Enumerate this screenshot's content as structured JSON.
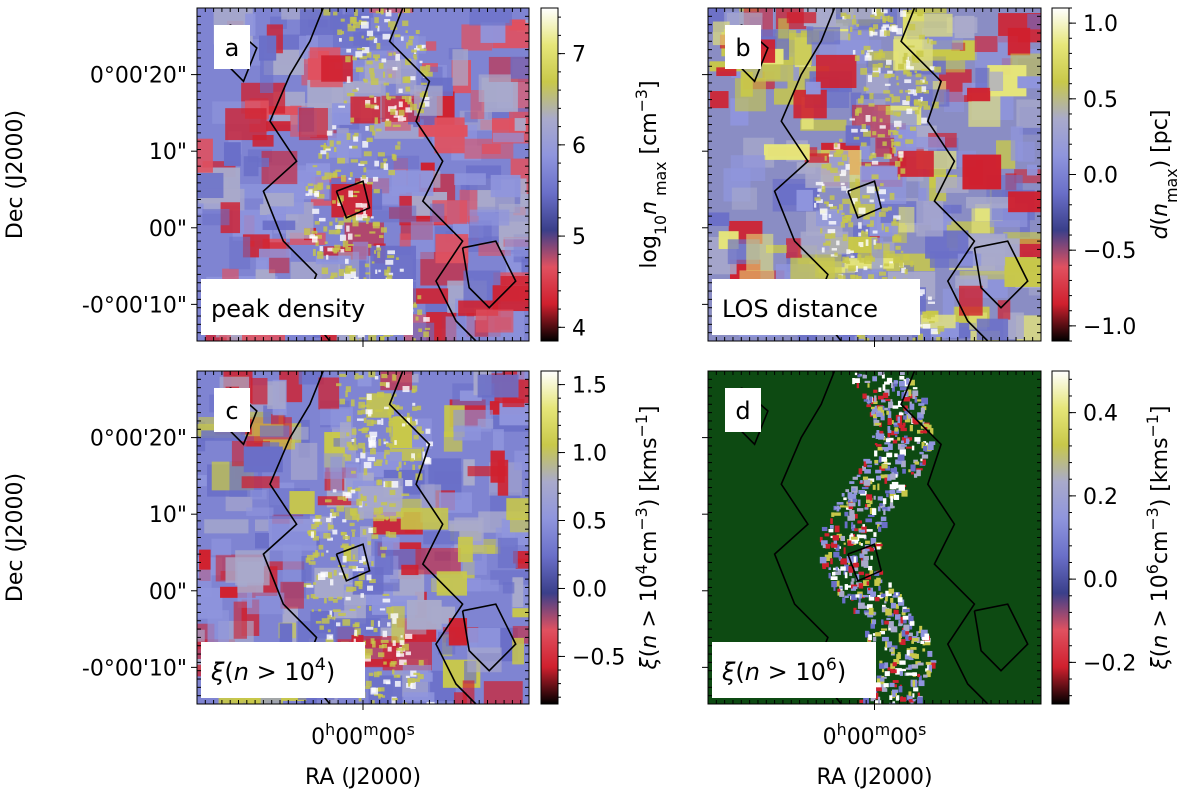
{
  "chart_data": [
    {
      "type": "heatmap",
      "id": "a",
      "panel_letter": "a",
      "label": "peak density",
      "ylabel": "Dec (J2000)",
      "xlabel": "",
      "yticks": [
        "0°00'20\"",
        "10\"",
        "00\"",
        "-0°00'10\""
      ],
      "xticks": [],
      "colorbar": {
        "label_plain": "log10 n max [cm^-3]",
        "label_parts": [
          {
            "t": "log"
          },
          {
            "t": "10",
            "sub": true
          },
          {
            "t": "n",
            "italic": true
          },
          {
            "t": " max",
            "sub": true
          },
          {
            "t": "  [cm"
          },
          {
            "t": "−3",
            "sup": true
          },
          {
            "t": "]"
          }
        ],
        "range": [
          3.85,
          7.5
        ],
        "ticks": [
          {
            "v": 4,
            "t": "4"
          },
          {
            "v": 5,
            "t": "5"
          },
          {
            "v": 6,
            "t": "6"
          },
          {
            "v": 7,
            "t": "7"
          }
        ],
        "colors": [
          "#000000",
          "#d0202e",
          "#e05160",
          "#3a3f8a",
          "#6a6fc8",
          "#8f95dd",
          "#a9aacb",
          "#c8c84a",
          "#e6e679",
          "#ffffff"
        ]
      }
    },
    {
      "type": "heatmap",
      "id": "b",
      "panel_letter": "b",
      "label": "LOS distance",
      "ylabel": "",
      "xlabel": "",
      "yticks": [],
      "xticks": [],
      "colorbar": {
        "label_plain": "d(n max) [pc]",
        "label_parts": [
          {
            "t": "d",
            "italic": true
          },
          {
            "t": "("
          },
          {
            "t": "n",
            "italic": true
          },
          {
            "t": "max",
            "sub": true
          },
          {
            "t": ")  [pc]"
          }
        ],
        "range": [
          -1.1,
          1.1
        ],
        "ticks": [
          {
            "v": -1.0,
            "t": "−1.0"
          },
          {
            "v": -0.5,
            "t": "−0.5"
          },
          {
            "v": 0.0,
            "t": "0.0"
          },
          {
            "v": 0.5,
            "t": "0.5"
          },
          {
            "v": 1.0,
            "t": "1.0"
          }
        ],
        "colors": [
          "#000000",
          "#d0202e",
          "#e05160",
          "#3a3f8a",
          "#6a6fc8",
          "#8f95dd",
          "#a9aacb",
          "#c8c84a",
          "#e6e679",
          "#ffffff"
        ]
      }
    },
    {
      "type": "heatmap",
      "id": "c",
      "panel_letter": "c",
      "label": "ξ(n > 10^4)",
      "label_parts": [
        {
          "t": "ξ",
          "italic": true
        },
        {
          "t": "("
        },
        {
          "t": "n",
          "italic": true
        },
        {
          "t": " > 10"
        },
        {
          "t": "4",
          "sup": true
        },
        {
          "t": ")"
        }
      ],
      "ylabel": "Dec (J2000)",
      "xlabel": "RA (J2000)",
      "yticks": [
        "0°00'20\"",
        "10\"",
        "00\"",
        "-0°00'10\""
      ],
      "xticks": [
        "0h00m00s"
      ],
      "colorbar": {
        "label_plain": "ξ(n > 10^4 cm^-3) [km s^-1]",
        "label_parts": [
          {
            "t": "ξ",
            "italic": true
          },
          {
            "t": "("
          },
          {
            "t": "n",
            "italic": true
          },
          {
            "t": " > 10"
          },
          {
            "t": "4",
            "sup": true
          },
          {
            "t": "cm"
          },
          {
            "t": "−3",
            "sup": true
          },
          {
            "t": ")  [kms"
          },
          {
            "t": "−1",
            "sup": true
          },
          {
            "t": "]"
          }
        ],
        "range": [
          -0.85,
          1.6
        ],
        "ticks": [
          {
            "v": -0.5,
            "t": "−0.5"
          },
          {
            "v": 0.0,
            "t": "0.0"
          },
          {
            "v": 0.5,
            "t": "0.5"
          },
          {
            "v": 1.0,
            "t": "1.0"
          },
          {
            "v": 1.5,
            "t": "1.5"
          }
        ],
        "colors": [
          "#000000",
          "#d0202e",
          "#e05160",
          "#3a3f8a",
          "#6a6fc8",
          "#8f95dd",
          "#a9aacb",
          "#c8c84a",
          "#e6e679",
          "#ffffff"
        ]
      }
    },
    {
      "type": "heatmap",
      "id": "d",
      "panel_letter": "d",
      "label": "ξ(n > 10^6)",
      "label_parts": [
        {
          "t": "ξ",
          "italic": true
        },
        {
          "t": "("
        },
        {
          "t": "n",
          "italic": true
        },
        {
          "t": " > 10"
        },
        {
          "t": "6",
          "sup": true
        },
        {
          "t": ")"
        }
      ],
      "ylabel": "",
      "xlabel": "RA (J2000)",
      "yticks": [],
      "xticks": [
        "0h00m00s"
      ],
      "colorbar": {
        "label_plain": "ξ(n > 10^6 cm^-3) [km s^-1]",
        "label_parts": [
          {
            "t": "ξ",
            "italic": true
          },
          {
            "t": "("
          },
          {
            "t": "n",
            "italic": true
          },
          {
            "t": " > 10"
          },
          {
            "t": "6",
            "sup": true
          },
          {
            "t": "cm"
          },
          {
            "t": "−3",
            "sup": true
          },
          {
            "t": ")  [kms"
          },
          {
            "t": "−1",
            "sup": true
          },
          {
            "t": "]"
          }
        ],
        "range": [
          -0.3,
          0.5
        ],
        "ticks": [
          {
            "v": -0.2,
            "t": "−0.2"
          },
          {
            "v": 0.0,
            "t": "0.0"
          },
          {
            "v": 0.2,
            "t": "0.2"
          },
          {
            "v": 0.4,
            "t": "0.4"
          }
        ],
        "colors": [
          "#000000",
          "#d0202e",
          "#e05160",
          "#3a3f8a",
          "#6a6fc8",
          "#8f95dd",
          "#a9aacb",
          "#c8c84a",
          "#e6e679",
          "#ffffff"
        ],
        "masked_color": "#0d4a12"
      }
    }
  ]
}
